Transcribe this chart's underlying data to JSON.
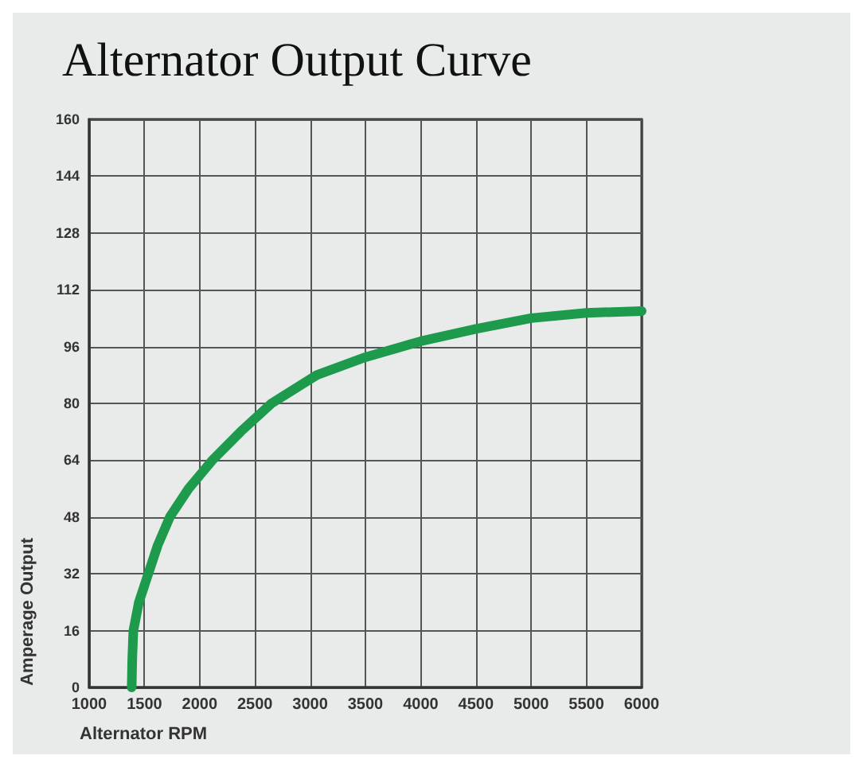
{
  "chart_data": {
    "type": "line",
    "title": "Alternator Output Curve",
    "xlabel": "Alternator RPM",
    "ylabel": "Amperage Output",
    "series": [
      {
        "color": "#1e9a4c",
        "x": [
          1385,
          1390,
          1400,
          1450,
          1535,
          1620,
          1730,
          1900,
          2115,
          2370,
          2650,
          3060,
          3500,
          4000,
          4500,
          5000,
          5500,
          6000
        ],
        "values": [
          0,
          8,
          16,
          24,
          32,
          40,
          48,
          56,
          64,
          72,
          80,
          88,
          93,
          97.5,
          101,
          104,
          105.5,
          106
        ]
      }
    ],
    "xlim": [
      1000,
      6000
    ],
    "xticks": [
      1000,
      1500,
      2000,
      2500,
      3000,
      3500,
      4000,
      4500,
      5000,
      5500,
      6000
    ],
    "ylim": [
      0,
      160
    ],
    "yticks": [
      0,
      16,
      32,
      48,
      64,
      80,
      96,
      112,
      128,
      144,
      160
    ],
    "grid": true,
    "marker": "none",
    "line_style": "solid"
  }
}
